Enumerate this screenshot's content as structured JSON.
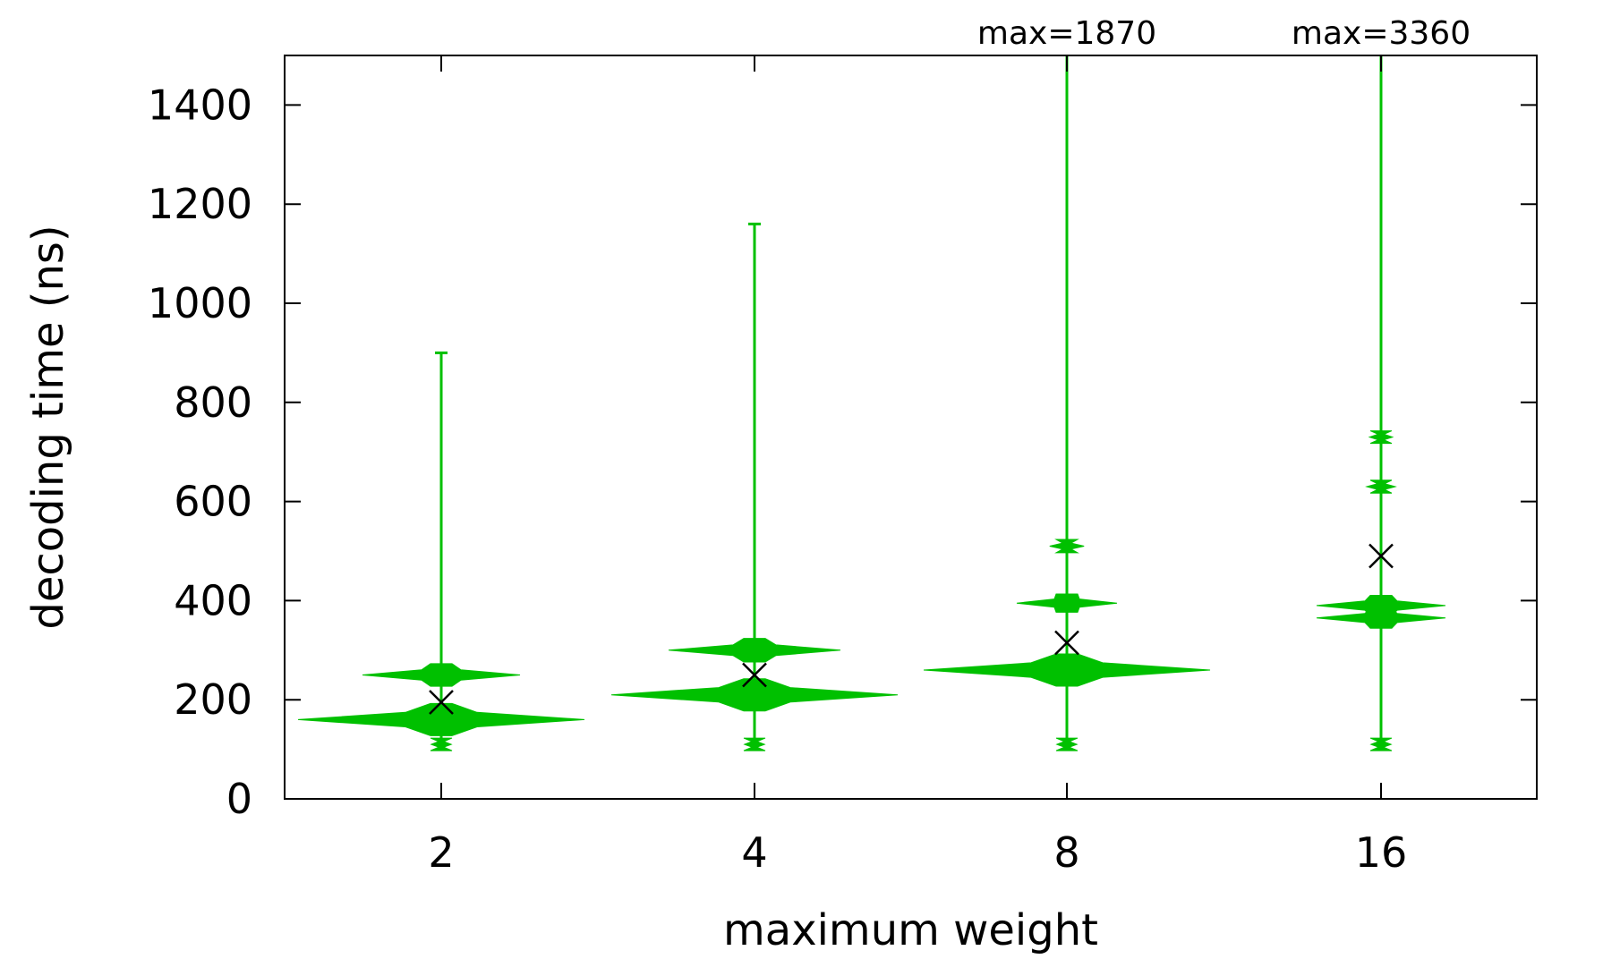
{
  "chart_data": {
    "type": "violin",
    "title": "",
    "xlabel": "maximum weight",
    "ylabel": "decoding time (ns)",
    "ylim": [
      0,
      1500
    ],
    "y_ticks": [
      0,
      200,
      400,
      600,
      800,
      1000,
      1200,
      1400
    ],
    "categories": [
      "2",
      "4",
      "8",
      "16"
    ],
    "grid": false,
    "color": "#00c000",
    "mean_marker_color": "#000000",
    "means": [
      195,
      250,
      315,
      490
    ],
    "maxima_shown": [
      900,
      1160,
      1870,
      3360
    ],
    "annotations": [
      "",
      "",
      "max=1870",
      "max=3360"
    ],
    "distributions": [
      {
        "category": "2",
        "min": 100,
        "max": 900,
        "modes": [
          {
            "value": 160,
            "relative_width": 1.0
          },
          {
            "value": 250,
            "relative_width": 0.55
          },
          {
            "value": 110,
            "relative_width": 0.07
          }
        ]
      },
      {
        "category": "4",
        "min": 100,
        "max": 1160,
        "modes": [
          {
            "value": 210,
            "relative_width": 1.0
          },
          {
            "value": 300,
            "relative_width": 0.6
          },
          {
            "value": 110,
            "relative_width": 0.07
          }
        ]
      },
      {
        "category": "8",
        "min": 100,
        "max": 1870,
        "modes": [
          {
            "value": 260,
            "relative_width": 1.0
          },
          {
            "value": 395,
            "relative_width": 0.35
          },
          {
            "value": 510,
            "relative_width": 0.12
          },
          {
            "value": 110,
            "relative_width": 0.07
          }
        ]
      },
      {
        "category": "16",
        "min": 100,
        "max": 3360,
        "modes": [
          {
            "value": 365,
            "relative_width": 0.45
          },
          {
            "value": 390,
            "relative_width": 0.45
          },
          {
            "value": 630,
            "relative_width": 0.1
          },
          {
            "value": 730,
            "relative_width": 0.08
          },
          {
            "value": 110,
            "relative_width": 0.07
          }
        ]
      }
    ]
  }
}
